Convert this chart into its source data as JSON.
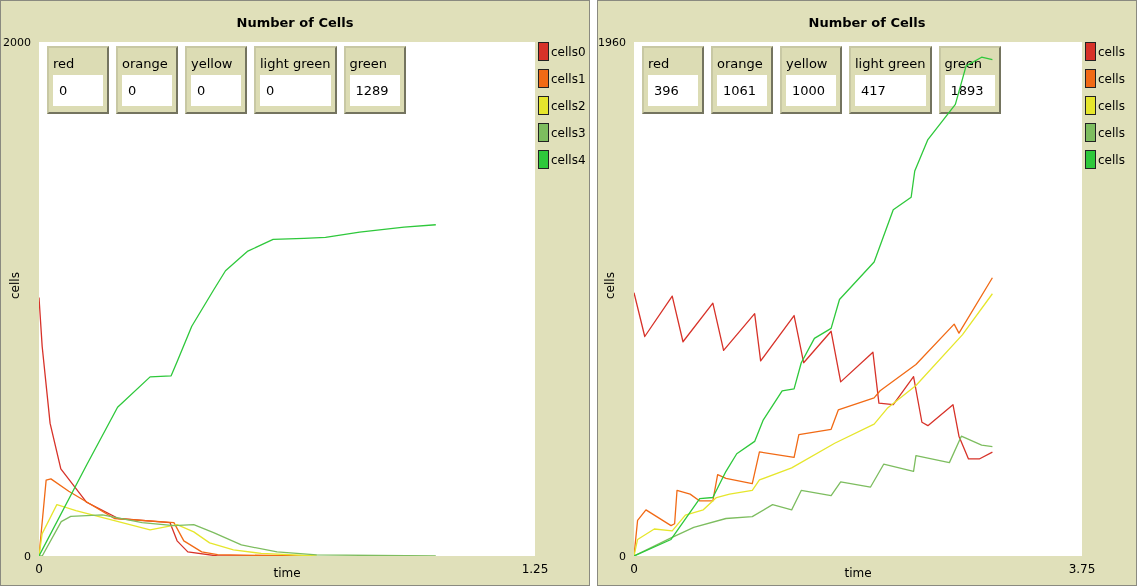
{
  "chart_data": [
    {
      "type": "line",
      "title": "Number of Cells",
      "xlabel": "time",
      "ylabel": "cells",
      "xlim": [
        0,
        1.25
      ],
      "xticks": [
        0,
        1.25
      ],
      "ylim": [
        0,
        2000
      ],
      "yticks": [
        0,
        2000
      ],
      "legend": "top right",
      "annotations": [
        "red",
        "0",
        "orange",
        "0",
        "yellow",
        "0",
        "light green",
        "0",
        "green",
        "1289"
      ],
      "series": [
        {
          "name": "cells0",
          "color": "#d73229",
          "x": [
            0,
            0.008,
            0.028,
            0.055,
            0.12,
            0.2,
            0.33,
            0.348,
            0.375,
            0.45,
            0.6
          ],
          "values": [
            1006,
            815,
            516,
            339,
            209,
            146,
            130,
            59,
            16,
            0,
            0
          ]
        },
        {
          "name": "cells1",
          "color": "#f16a15",
          "x": [
            0,
            0.018,
            0.03,
            0.075,
            0.19,
            0.34,
            0.365,
            0.41,
            0.45,
            0.67
          ],
          "values": [
            0,
            295,
            300,
            252,
            146,
            130,
            59,
            16,
            5,
            0
          ]
        },
        {
          "name": "cells2",
          "color": "#e6e62c",
          "x": [
            0,
            0.008,
            0.045,
            0.093,
            0.19,
            0.28,
            0.348,
            0.39,
            0.43,
            0.49,
            0.56,
            0.7
          ],
          "values": [
            0,
            87,
            200,
            177,
            138,
            102,
            122,
            94,
            51,
            24,
            10,
            0
          ]
        },
        {
          "name": "cells3",
          "color": "#7dbd5f",
          "x": [
            0,
            0.008,
            0.056,
            0.08,
            0.16,
            0.26,
            0.34,
            0.39,
            0.44,
            0.51,
            0.6,
            0.7,
            1.0
          ],
          "values": [
            0,
            0,
            134,
            154,
            160,
            130,
            118,
            122,
            91,
            43,
            16,
            4,
            0
          ]
        },
        {
          "name": "cells4",
          "color": "#2ec83b",
          "x": [
            0,
            0.12,
            0.198,
            0.28,
            0.333,
            0.348,
            0.385,
            0.44,
            0.47,
            0.525,
            0.59,
            0.668,
            0.722,
            0.808,
            0.92,
            1.0
          ],
          "values": [
            0,
            354,
            579,
            697,
            701,
            756,
            894,
            1035,
            1110,
            1185,
            1232,
            1236,
            1240,
            1260,
            1280,
            1289
          ]
        }
      ]
    },
    {
      "type": "line",
      "title": "Number of Cells",
      "xlabel": "time",
      "ylabel": "cells",
      "xlim": [
        0,
        3.75
      ],
      "xticks": [
        0,
        3.75
      ],
      "ylim": [
        0,
        1960
      ],
      "yticks": [
        0,
        1960
      ],
      "legend": "top right",
      "annotations": [
        "red",
        "396",
        "orange",
        "1061",
        "yellow",
        "1000",
        "light green",
        "417",
        "green",
        "1893"
      ],
      "series": [
        {
          "name": "cells",
          "color": "#d73229",
          "x": [
            0,
            0.09,
            0.32,
            0.41,
            0.66,
            0.75,
            1.01,
            1.06,
            1.34,
            1.42,
            1.65,
            1.73,
            2.0,
            2.05,
            2.17,
            2.34,
            2.41,
            2.46,
            2.67,
            2.72,
            2.8,
            2.89,
            3.0
          ],
          "values": [
            1004,
            837,
            991,
            817,
            964,
            784,
            924,
            744,
            917,
            737,
            857,
            664,
            777,
            583,
            577,
            684,
            510,
            497,
            577,
            457,
            370,
            370,
            396
          ]
        },
        {
          "name": "cells",
          "color": "#f16a15",
          "x": [
            0,
            0.03,
            0.1,
            0.31,
            0.34,
            0.36,
            0.47,
            0.55,
            0.66,
            0.7,
            0.77,
            0.99,
            1.05,
            1.34,
            1.38,
            1.65,
            1.71,
            2.01,
            2.06,
            2.36,
            2.68,
            2.72,
            3.0
          ],
          "values": [
            0,
            136,
            176,
            116,
            123,
            250,
            236,
            210,
            210,
            310,
            296,
            276,
            397,
            376,
            463,
            483,
            557,
            603,
            630,
            730,
            884,
            850,
            1061
          ]
        },
        {
          "name": "cells",
          "color": "#e6e62c",
          "x": [
            0,
            0.03,
            0.17,
            0.32,
            0.43,
            0.58,
            0.69,
            0.8,
            0.99,
            1.05,
            1.32,
            1.68,
            2.01,
            2.12,
            2.36,
            2.75,
            3.0
          ],
          "values": [
            0,
            63,
            103,
            96,
            156,
            176,
            223,
            236,
            250,
            290,
            336,
            430,
            503,
            563,
            650,
            844,
            1000
          ]
        },
        {
          "name": "cells",
          "color": "#7dbd5f",
          "x": [
            0,
            0.31,
            0.5,
            0.77,
            0.99,
            1.16,
            1.32,
            1.4,
            1.65,
            1.73,
            1.98,
            2.09,
            2.34,
            2.36,
            2.64,
            2.74,
            2.91,
            3.0
          ],
          "values": [
            0,
            69,
            109,
            143,
            150,
            196,
            176,
            250,
            230,
            283,
            263,
            350,
            323,
            383,
            356,
            457,
            423,
            417
          ]
        },
        {
          "name": "cells",
          "color": "#2ec83b",
          "x": [
            0,
            0.31,
            0.55,
            0.66,
            0.77,
            0.86,
            1.01,
            1.08,
            1.24,
            1.34,
            1.4,
            1.51,
            1.65,
            1.72,
            2.01,
            2.17,
            2.32,
            2.35,
            2.46,
            2.69,
            2.78,
            2.91,
            3.0
          ],
          "values": [
            0,
            63,
            219,
            223,
            323,
            390,
            437,
            517,
            630,
            637,
            737,
            830,
            868,
            978,
            1121,
            1320,
            1368,
            1468,
            1588,
            1722,
            1869,
            1902,
            1893
          ]
        }
      ]
    }
  ]
}
